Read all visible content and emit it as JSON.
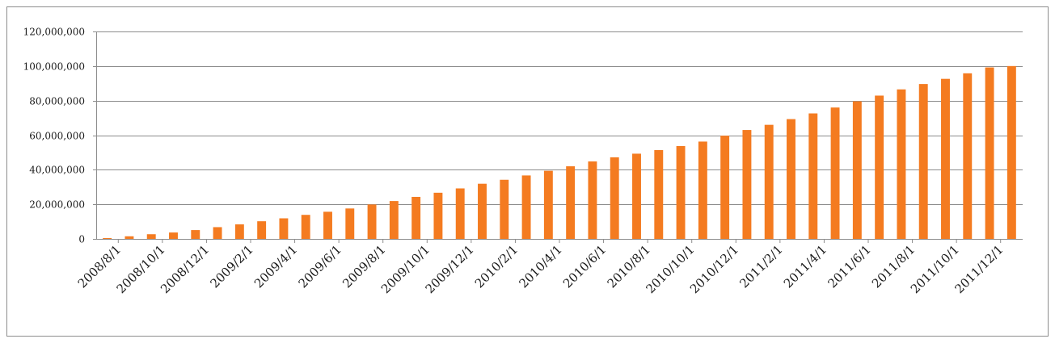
{
  "chart_data": {
    "type": "bar",
    "title": "",
    "xlabel": "",
    "ylabel": "",
    "ylim": [
      0,
      120000000
    ],
    "y_ticks": [
      0,
      20000000,
      40000000,
      60000000,
      80000000,
      100000000,
      120000000
    ],
    "y_tick_labels": [
      "0",
      "20,000,000",
      "40,000,000",
      "60,000,000",
      "80,000,000",
      "100,000,000",
      "120,000,000"
    ],
    "grid": true,
    "legend": "none",
    "bar_color": "#F47B20",
    "categories": [
      "2008/8/1",
      "2008/9/1",
      "2008/10/1",
      "2008/11/1",
      "2008/12/1",
      "2009/1/1",
      "2009/2/1",
      "2009/3/1",
      "2009/4/1",
      "2009/5/1",
      "2009/6/1",
      "2009/7/1",
      "2009/8/1",
      "2009/9/1",
      "2009/10/1",
      "2009/11/1",
      "2009/12/1",
      "2010/1/1",
      "2010/2/1",
      "2010/3/1",
      "2010/4/1",
      "2010/5/1",
      "2010/6/1",
      "2010/7/1",
      "2010/8/1",
      "2010/9/1",
      "2010/10/1",
      "2010/11/1",
      "2010/12/1",
      "2011/1/1",
      "2011/2/1",
      "2011/3/1",
      "2011/4/1",
      "2011/5/1",
      "2011/6/1",
      "2011/7/1",
      "2011/8/1",
      "2011/9/1",
      "2011/10/1",
      "2011/11/1",
      "2011/12/1",
      "2012/1/1"
    ],
    "x_tick_labels": [
      "2008/8/1",
      "2008/10/1",
      "2008/12/1",
      "2009/2/1",
      "2009/4/1",
      "2009/6/1",
      "2009/8/1",
      "2009/10/1",
      "2009/12/1",
      "2010/2/1",
      "2010/4/1",
      "2010/6/1",
      "2010/8/1",
      "2010/10/1",
      "2010/12/1",
      "2011/2/1",
      "2011/4/1",
      "2011/6/1",
      "2011/8/1",
      "2011/10/1",
      "2011/12/1"
    ],
    "values": [
      500000,
      1500000,
      2700000,
      3700000,
      5100000,
      6800000,
      8400000,
      10200000,
      11900000,
      13900000,
      15700000,
      17600000,
      19900000,
      21900000,
      24300000,
      26700000,
      29200000,
      31900000,
      34200000,
      36700000,
      39400000,
      42000000,
      44800000,
      47200000,
      49300000,
      51400000,
      53700000,
      56300000,
      59700000,
      63000000,
      66000000,
      69300000,
      72600000,
      76000000,
      79600000,
      82900000,
      86500000,
      89600000,
      92600000,
      95800000,
      99200000,
      100000000
    ]
  }
}
